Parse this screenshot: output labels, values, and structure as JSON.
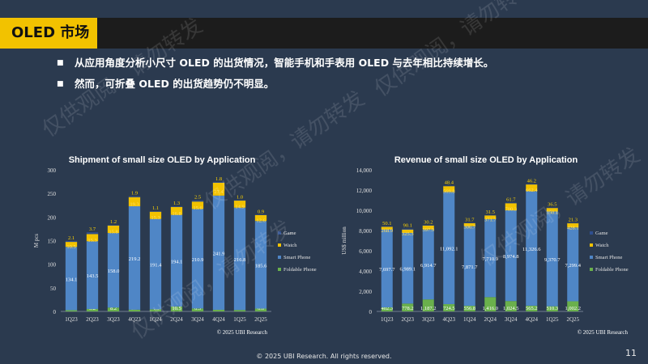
{
  "header": {
    "title": "OLED 市场"
  },
  "bullets": [
    "从应用角度分析小尺寸 OLED 的出货情况，智能手机和手表用 OLED 与去年相比持续增长。",
    "然而，可折叠 OLED 的出货趋势仍不明显。"
  ],
  "watermark_text": "仅供观阅，请勿转发",
  "footer": "© 2025 UBI Research. All rights reserved.",
  "page_number": "11",
  "colors": {
    "background": "#2b3a4f",
    "accent": "#f2c200",
    "foldable": "#6ab04c",
    "smartphone": "#4f86c6",
    "watch": "#f2c200",
    "game": "#2f4f8f"
  },
  "chart_data": [
    {
      "type": "bar",
      "stacked": true,
      "title": "Shipment of small size OLED by Application",
      "ylabel": "M pcs",
      "xlabel": "",
      "ylim": [
        0,
        300
      ],
      "yticks": [
        0,
        50,
        100,
        150,
        200,
        250,
        300
      ],
      "categories": [
        "1Q23",
        "2Q23",
        "3Q23",
        "4Q23",
        "1Q24",
        "2Q24",
        "3Q24",
        "4Q24",
        "1Q25",
        "2Q25"
      ],
      "series": [
        {
          "name": "Foldable Phone",
          "color": "#6ab04c",
          "values": [
            2.7,
            5.2,
            8.2,
            3.7,
            4.6,
            10.5,
            6.3,
            3.5,
            3.1,
            6.0
          ],
          "labels": [
            "2.7",
            "5.2",
            "8.2",
            "3.7",
            "4.6",
            "10.5",
            "6.3",
            "3.5",
            "3.1",
            "6.0"
          ]
        },
        {
          "name": "Smart Phone",
          "color": "#4f86c6",
          "values": [
            134.1,
            143.5,
            158.0,
            219.2,
            191.4,
            194.1,
            210.9,
            241.9,
            216.8,
            185.6
          ],
          "labels": [
            "134.1",
            "143.5",
            "158.0",
            "219.2",
            "191.4",
            "194.1",
            "210.9",
            "241.9",
            "216.8",
            "185.6"
          ]
        },
        {
          "name": "Watch",
          "color": "#f2c200",
          "values": [
            10.5,
            15.3,
            15.8,
            19.3,
            15.3,
            16.8,
            15.6,
            27.4,
            14.9,
            12.6
          ],
          "labels": [
            "10.5",
            "15.3",
            "15.8",
            "19.3",
            "15.3",
            "16.8",
            "15.6",
            "27.4",
            "14.9",
            "12.6"
          ]
        },
        {
          "name": "Game",
          "color": "#2f4f8f",
          "values": [
            2.1,
            3.7,
            1.2,
            1.9,
            1.1,
            1.3,
            2.5,
            1.8,
            1.0,
            0.9
          ],
          "labels": [
            "2.1",
            "3.7",
            "1.2",
            "1.9",
            "1.1",
            "1.3",
            "2.5",
            "1.8",
            "1.0",
            "0.9"
          ]
        }
      ],
      "legend_position": "right",
      "source": "© 2025 UBI Research"
    },
    {
      "type": "bar",
      "stacked": true,
      "title": "Revenue of small size OLED by Application",
      "ylabel": "US$ million",
      "xlabel": "",
      "ylim": [
        0,
        14000
      ],
      "yticks": [
        0,
        2000,
        4000,
        6000,
        8000,
        10000,
        12000,
        14000
      ],
      "ytick_labels": [
        "0",
        "2,000",
        "4,000",
        "6,000",
        "8,000",
        "10,000",
        "12,000",
        "14,000"
      ],
      "categories": [
        "1Q23",
        "2Q23",
        "3Q23",
        "4Q23",
        "1Q24",
        "2Q24",
        "3Q24",
        "4Q24",
        "1Q25",
        "2Q25"
      ],
      "series": [
        {
          "name": "Foldable Phone",
          "color": "#6ab04c",
          "values": [
            402.3,
            778.2,
            1187.2,
            724.5,
            556.8,
            1416.0,
            1024.5,
            565.2,
            510.3,
            1002.2
          ],
          "labels": [
            "402.3",
            "778.2",
            "1,187.2",
            "724.5",
            "556.8",
            "1,416.0",
            "1,024.5",
            "565.2",
            "510.3",
            "1,002.2"
          ]
        },
        {
          "name": "Smart Phone",
          "color": "#4f86c6",
          "values": [
            7697.7,
            6989.1,
            6914.7,
            11092.1,
            7871.7,
            7710.9,
            8974.8,
            11326.6,
            9370.7,
            7299.4
          ],
          "labels": [
            "7,697.7",
            "6,989.1",
            "6,914.7",
            "11,092.1",
            "7,871.7",
            "7,710.9",
            "8,974.8",
            "11,326.6",
            "9,370.7",
            "7,299.4"
          ]
        },
        {
          "name": "Watch",
          "color": "#f2c200",
          "values": [
            268.9,
            325.3,
            397.9,
            569.8,
            306.7,
            371.7,
            700.3,
            662.4,
            350.1,
            428.1
          ],
          "labels": [
            "268.9",
            "325.3",
            "397.9",
            "569.8",
            "306.7",
            "371.7",
            "700.3",
            "662.4",
            "350.1",
            "428.1"
          ]
        },
        {
          "name": "Game",
          "color": "#2f4f8f",
          "values": [
            50.1,
            90.1,
            30.2,
            48.4,
            31.7,
            31.5,
            61.7,
            46.2,
            36.5,
            21.3
          ],
          "labels": [
            "50.1",
            "90.1",
            "30.2",
            "48.4",
            "31.7",
            "31.5",
            "61.7",
            "46.2",
            "36.5",
            "21.3"
          ]
        }
      ],
      "legend_position": "right",
      "source": "© 2025 UBI Research"
    }
  ]
}
